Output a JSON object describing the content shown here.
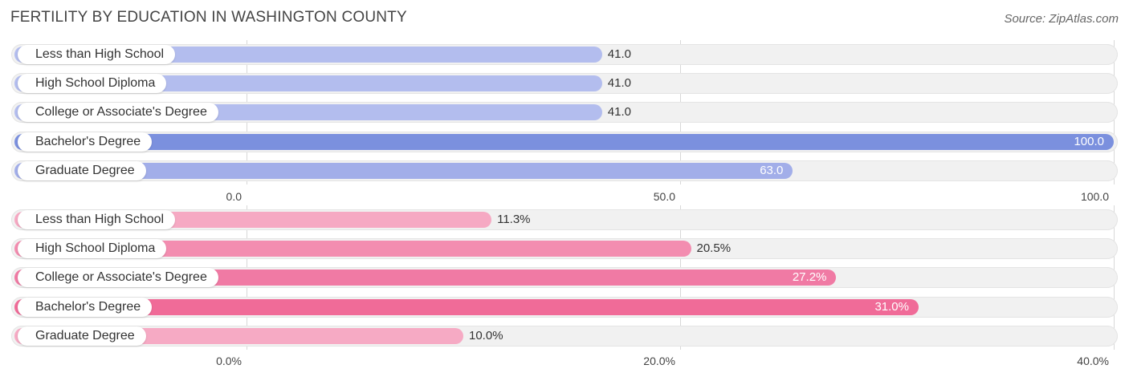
{
  "title": "FERTILITY BY EDUCATION IN WASHINGTON COUNTY",
  "source": "Source: ZipAtlas.com",
  "colors": {
    "blue_light": "#b3bdee",
    "blue_strong": "#7b90de",
    "pink_light": "#f6a9c3",
    "pink_mid": "#f38db0",
    "pink_strong": "#f06b98"
  },
  "chart_data": [
    {
      "type": "bar",
      "orientation": "horizontal",
      "categories": [
        "Less than High School",
        "High School Diploma",
        "College or Associate's Degree",
        "Bachelor's Degree",
        "Graduate Degree"
      ],
      "values": [
        41.0,
        41.0,
        41.0,
        100.0,
        63.0
      ],
      "value_labels": [
        "41.0",
        "41.0",
        "41.0",
        "100.0",
        "63.0"
      ],
      "xlim": [
        0,
        100
      ],
      "ticks": [
        "0.0",
        "50.0",
        "100.0"
      ],
      "tick_values": [
        0,
        50,
        100
      ],
      "bar_colors": [
        "#b3bdee",
        "#b3bdee",
        "#b3bdee",
        "#7b90de",
        "#a2aee9"
      ]
    },
    {
      "type": "bar",
      "orientation": "horizontal",
      "categories": [
        "Less than High School",
        "High School Diploma",
        "College or Associate's Degree",
        "Bachelor's Degree",
        "Graduate Degree"
      ],
      "values": [
        11.3,
        20.5,
        27.2,
        31.0,
        10.0
      ],
      "value_labels": [
        "11.3%",
        "20.5%",
        "27.2%",
        "31.0%",
        "10.0%"
      ],
      "xlim": [
        0,
        40
      ],
      "ticks": [
        "0.0%",
        "20.0%",
        "40.0%"
      ],
      "tick_values": [
        0,
        20,
        40
      ],
      "bar_colors": [
        "#f6a9c3",
        "#f38db0",
        "#f07aa4",
        "#f06b98",
        "#f6aac4"
      ]
    }
  ]
}
